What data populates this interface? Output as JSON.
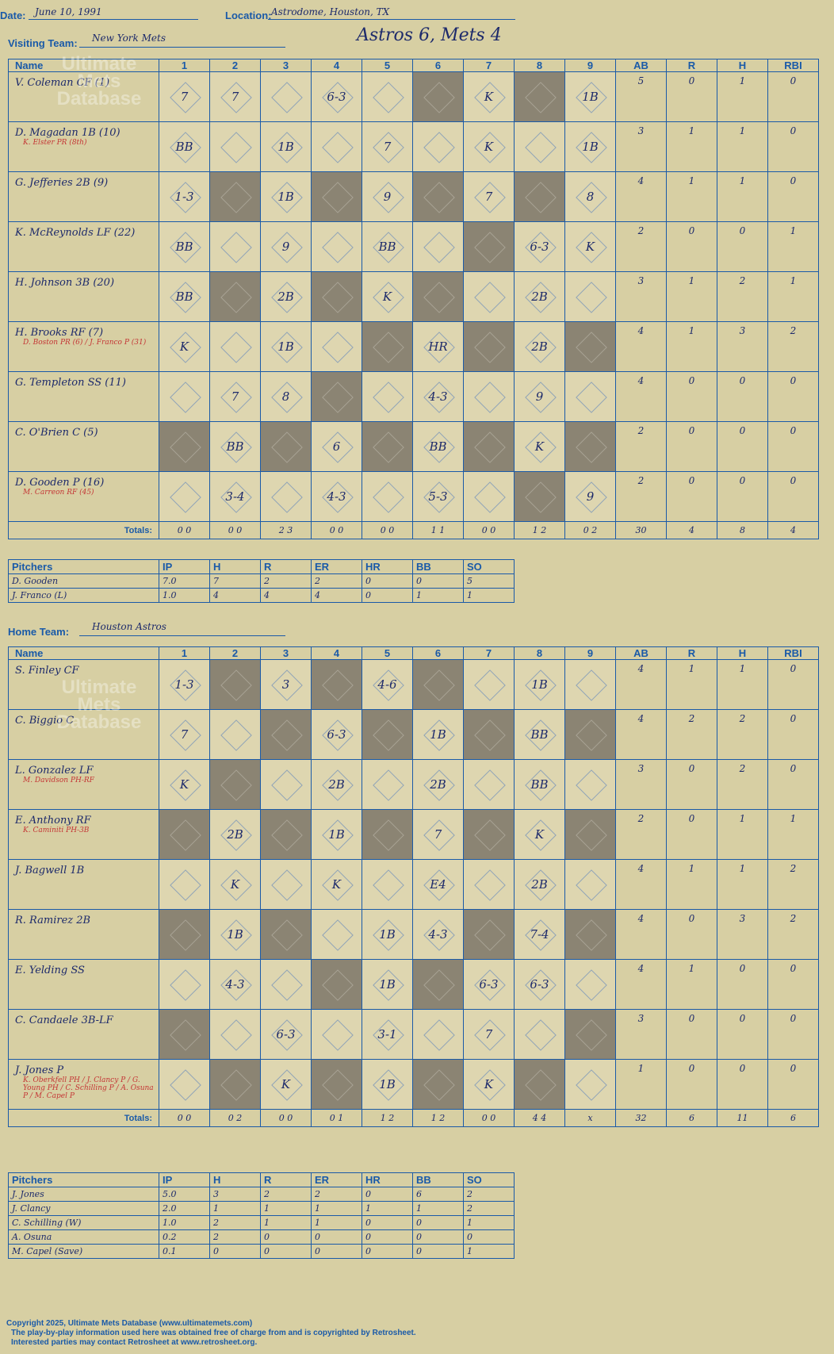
{
  "header": {
    "date_label": "Date:",
    "date_value": "June 10, 1991",
    "location_label": "Location:",
    "location_value": "Astrodome, Houston, TX",
    "title": "Astros 6, Mets 4"
  },
  "visiting": {
    "team_label": "Visiting Team:",
    "team_value": "New York Mets",
    "columns": [
      "Name",
      "1",
      "2",
      "3",
      "4",
      "5",
      "6",
      "7",
      "8",
      "9",
      "AB",
      "R",
      "H",
      "RBI"
    ],
    "players": [
      {
        "name": "V. Coleman CF (1)",
        "sub": "",
        "stats": [
          "5",
          "0",
          "1",
          "0"
        ],
        "results": [
          "7",
          "7",
          "",
          "6-3",
          "",
          "",
          "K",
          "",
          "1B"
        ]
      },
      {
        "name": "D. Magadan 1B (10)",
        "sub": "K. Elster PR (8th)",
        "stats": [
          "3",
          "1",
          "1",
          "0"
        ],
        "results": [
          "BB",
          "",
          "1B",
          "",
          "7",
          "",
          "K",
          "",
          "1B"
        ]
      },
      {
        "name": "G. Jefferies 2B (9)",
        "sub": "",
        "stats": [
          "4",
          "1",
          "1",
          "0"
        ],
        "results": [
          "1-3",
          "",
          "1B",
          "",
          "9",
          "",
          "7",
          "",
          "8"
        ]
      },
      {
        "name": "K. McReynolds LF (22)",
        "sub": "",
        "stats": [
          "2",
          "0",
          "0",
          "1"
        ],
        "results": [
          "BB",
          "",
          "9",
          "",
          "BB",
          "",
          "",
          "6-3",
          "K"
        ]
      },
      {
        "name": "H. Johnson 3B (20)",
        "sub": "",
        "stats": [
          "3",
          "1",
          "2",
          "1"
        ],
        "results": [
          "BB",
          "",
          "2B",
          "",
          "K",
          "",
          "",
          "2B",
          ""
        ]
      },
      {
        "name": "H. Brooks RF (7)",
        "sub": "D. Boston PR (6) / J. Franco P (31)",
        "stats": [
          "4",
          "1",
          "3",
          "2"
        ],
        "results": [
          "K",
          "",
          "1B",
          "",
          "",
          "HR",
          "",
          "2B",
          ""
        ]
      },
      {
        "name": "G. Templeton SS (11)",
        "sub": "",
        "stats": [
          "4",
          "0",
          "0",
          "0"
        ],
        "results": [
          "",
          "7",
          "8",
          "",
          "",
          "4-3",
          "",
          "9",
          ""
        ]
      },
      {
        "name": "C. O'Brien C (5)",
        "sub": "",
        "stats": [
          "2",
          "0",
          "0",
          "0"
        ],
        "results": [
          "",
          "BB",
          "",
          "6",
          "",
          "BB",
          "",
          "K",
          ""
        ]
      },
      {
        "name": "D. Gooden P (16)",
        "sub": "M. Carreon RF (45)",
        "stats": [
          "2",
          "0",
          "0",
          "0"
        ],
        "results": [
          "",
          "3-4",
          "",
          "4-3",
          "",
          "5-3",
          "",
          "",
          "9"
        ]
      }
    ],
    "totals_label": "Totals:",
    "totals_rh": [
      "R",
      "H"
    ],
    "totals": [
      "0 0",
      "0 0",
      "2 3",
      "0 0",
      "0 0",
      "1 1",
      "0 0",
      "1 2",
      "0 2"
    ],
    "totals_stats": [
      "30",
      "4",
      "8",
      "4"
    ]
  },
  "visiting_pitchers": {
    "columns": [
      "Pitchers",
      "IP",
      "H",
      "R",
      "ER",
      "HR",
      "BB",
      "SO"
    ],
    "rows": [
      [
        "D. Gooden",
        "7.0",
        "7",
        "2",
        "2",
        "0",
        "0",
        "5"
      ],
      [
        "J. Franco (L)",
        "1.0",
        "4",
        "4",
        "4",
        "0",
        "1",
        "1"
      ]
    ]
  },
  "home": {
    "team_label": "Home Team:",
    "team_value": "Houston Astros",
    "columns": [
      "Name",
      "1",
      "2",
      "3",
      "4",
      "5",
      "6",
      "7",
      "8",
      "9",
      "AB",
      "R",
      "H",
      "RBI"
    ],
    "players": [
      {
        "name": "S. Finley CF",
        "sub": "",
        "stats": [
          "4",
          "1",
          "1",
          "0"
        ],
        "results": [
          "1-3",
          "",
          "3",
          "",
          "4-6",
          "",
          "",
          "1B",
          ""
        ]
      },
      {
        "name": "C. Biggio C",
        "sub": "",
        "stats": [
          "4",
          "2",
          "2",
          "0"
        ],
        "results": [
          "7",
          "",
          "",
          "6-3",
          "",
          "1B",
          "",
          "BB",
          ""
        ]
      },
      {
        "name": "L. Gonzalez LF",
        "sub": "M. Davidson PH-RF",
        "stats": [
          "3",
          "0",
          "2",
          "0"
        ],
        "results": [
          "K",
          "",
          "",
          "2B",
          "",
          "2B",
          "",
          "BB",
          ""
        ]
      },
      {
        "name": "E. Anthony RF",
        "sub": "K. Caminiti PH-3B",
        "stats": [
          "2",
          "0",
          "1",
          "1"
        ],
        "results": [
          "",
          "2B",
          "",
          "1B",
          "",
          "7",
          "",
          "K",
          ""
        ]
      },
      {
        "name": "J. Bagwell 1B",
        "sub": "",
        "stats": [
          "4",
          "1",
          "1",
          "2"
        ],
        "results": [
          "",
          "K",
          "",
          "K",
          "",
          "E4",
          "",
          "2B",
          ""
        ]
      },
      {
        "name": "R. Ramirez 2B",
        "sub": "",
        "stats": [
          "4",
          "0",
          "3",
          "2"
        ],
        "results": [
          "",
          "1B",
          "",
          "",
          "1B",
          "4-3",
          "",
          "7-4",
          ""
        ]
      },
      {
        "name": "E. Yelding SS",
        "sub": "",
        "stats": [
          "4",
          "1",
          "0",
          "0"
        ],
        "results": [
          "",
          "4-3",
          "",
          "",
          "1B",
          "",
          "6-3",
          "6-3",
          ""
        ]
      },
      {
        "name": "C. Candaele 3B-LF",
        "sub": "",
        "stats": [
          "3",
          "0",
          "0",
          "0"
        ],
        "results": [
          "",
          "",
          "6-3",
          "",
          "3-1",
          "",
          "7",
          "",
          ""
        ]
      },
      {
        "name": "J. Jones P",
        "sub": "K. Oberkfell PH / J. Clancy P / G. Young PH / C. Schilling P / A. Osuna P / M. Capel P",
        "stats": [
          "1",
          "0",
          "0",
          "0"
        ],
        "results": [
          "",
          "",
          "K",
          "",
          "1B",
          "",
          "K",
          "",
          ""
        ]
      }
    ],
    "totals_label": "Totals:",
    "totals_rh": [
      "R",
      "H"
    ],
    "totals": [
      "0 0",
      "0 2",
      "0 0",
      "0 1",
      "1 2",
      "1 2",
      "0 0",
      "4 4",
      "x"
    ],
    "totals_stats": [
      "32",
      "6",
      "11",
      "6"
    ]
  },
  "home_pitchers": {
    "columns": [
      "Pitchers",
      "IP",
      "H",
      "R",
      "ER",
      "HR",
      "BB",
      "SO"
    ],
    "rows": [
      [
        "J. Jones",
        "5.0",
        "3",
        "2",
        "2",
        "0",
        "6",
        "2"
      ],
      [
        "J. Clancy",
        "2.0",
        "1",
        "1",
        "1",
        "1",
        "1",
        "2"
      ],
      [
        "C. Schilling (W)",
        "1.0",
        "2",
        "1",
        "1",
        "0",
        "0",
        "1"
      ],
      [
        "A. Osuna",
        "0.2",
        "2",
        "0",
        "0",
        "0",
        "0",
        "0"
      ],
      [
        "M. Capel (Save)",
        "0.1",
        "0",
        "0",
        "0",
        "0",
        "0",
        "1"
      ]
    ]
  },
  "footer": {
    "line1": "Copyright 2025, Ultimate Mets Database (www.ultimatemets.com)",
    "line2": "The play-by-play information used here was obtained free of charge from and is copyrighted by Retrosheet.",
    "line3": "Interested parties may contact Retrosheet at www.retrosheet.org."
  },
  "watermark": "Ultimate Mets Database"
}
